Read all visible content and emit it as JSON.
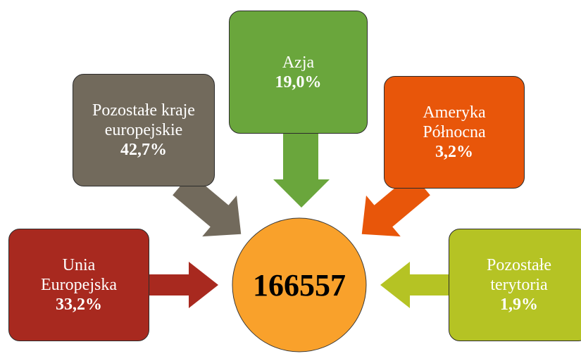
{
  "nodes": [
    {
      "label": [
        "Azja"
      ],
      "value": "19,0%"
    },
    {
      "label": [
        "Pozostałe kraje",
        "europejskie"
      ],
      "value": "42,7%"
    },
    {
      "label": [
        "Ameryka",
        "Północna"
      ],
      "value": "3,2%"
    },
    {
      "label": [
        "Unia",
        "Europejska"
      ],
      "value": "33,2%"
    },
    {
      "label": [
        "Pozostałe",
        "terytoria"
      ],
      "value": "1,9%"
    }
  ],
  "center": {
    "label": "166557"
  }
}
